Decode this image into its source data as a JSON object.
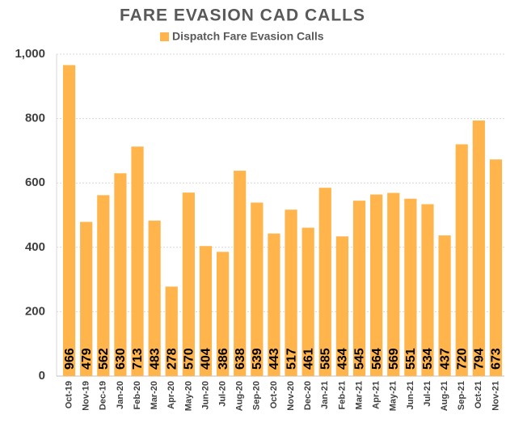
{
  "chart_data": {
    "type": "bar",
    "title": "FARE EVASION CAD CALLS",
    "series": [
      {
        "name": "Dispatch Fare Evasion Calls",
        "color": "#ffb54c",
        "values": [
          966,
          479,
          562,
          630,
          713,
          483,
          278,
          570,
          404,
          386,
          638,
          539,
          443,
          517,
          461,
          585,
          434,
          545,
          564,
          569,
          551,
          534,
          437,
          720,
          794,
          673
        ]
      }
    ],
    "categories": [
      "Oct-19",
      "Nov-19",
      "Dec-19",
      "Jan-20",
      "Feb-20",
      "Mar-20",
      "Apr-20",
      "May-20",
      "Jun-20",
      "Jul-20",
      "Aug-20",
      "Sep-20",
      "Oct-20",
      "Nov-20",
      "Dec-20",
      "Jan-21",
      "Feb-21",
      "Mar-21",
      "Apr-21",
      "May-21",
      "Jun-21",
      "Jul-21",
      "Aug-21",
      "Sep-21",
      "Oct-21",
      "Nov-21"
    ],
    "ylim": [
      0,
      1000
    ],
    "yticks": [
      0,
      200,
      400,
      600,
      800,
      {
        "value": 1000,
        "label": "1,000"
      }
    ],
    "grid": true,
    "legend": "top"
  }
}
